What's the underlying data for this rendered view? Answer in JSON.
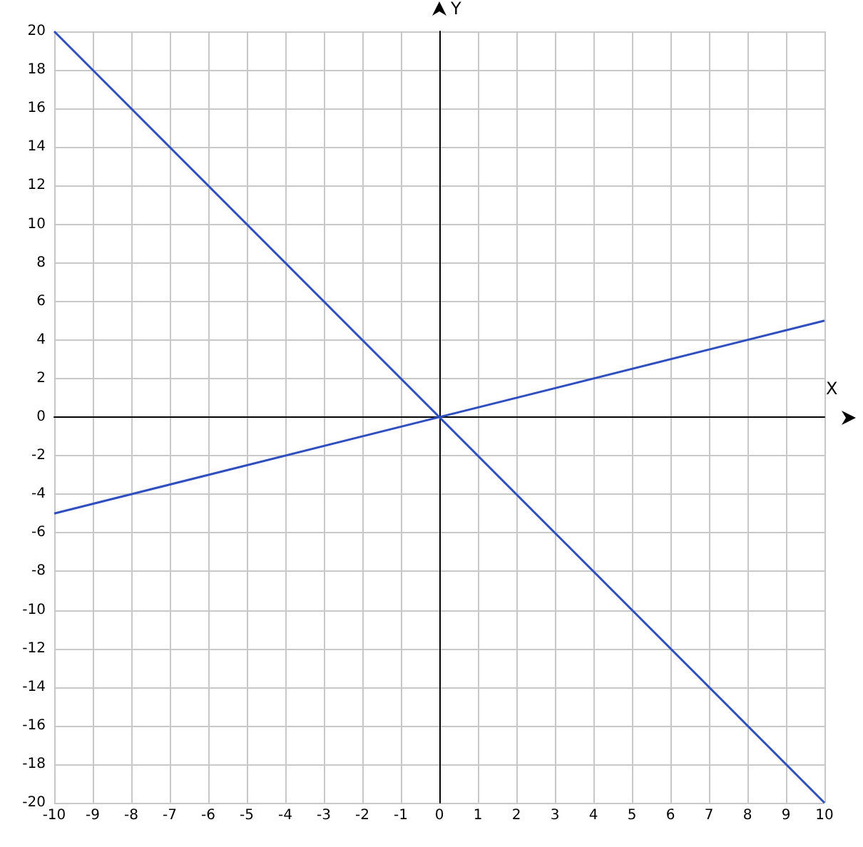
{
  "chart_data": {
    "type": "line",
    "xlabel": "X",
    "ylabel": "Y",
    "xlim": [
      -10,
      10
    ],
    "xticks": [
      -10,
      -9,
      -8,
      -7,
      -6,
      -5,
      -4,
      -3,
      -2,
      -1,
      0,
      1,
      2,
      3,
      4,
      5,
      6,
      7,
      8,
      9,
      10
    ],
    "ylim": [
      -20,
      20
    ],
    "yticks": [
      -20,
      -18,
      -16,
      -14,
      -12,
      -10,
      -8,
      -6,
      -4,
      -2,
      0,
      2,
      4,
      6,
      8,
      10,
      12,
      14,
      16,
      18,
      20
    ],
    "grid": true,
    "x": [
      -10,
      10
    ],
    "series": [
      {
        "color": "#2f4fbf",
        "values": [
          20,
          -20
        ]
      },
      {
        "color": "#2f4fbf",
        "values": [
          -5,
          5
        ]
      }
    ]
  }
}
